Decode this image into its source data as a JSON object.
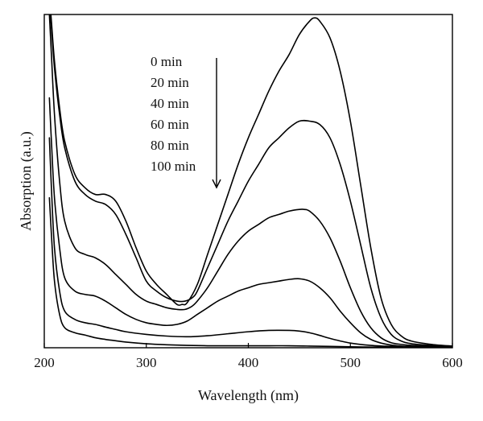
{
  "chart_data": {
    "type": "line",
    "title": "",
    "xlabel": "Wavelength (nm)",
    "ylabel": "Absorption (a.u.)",
    "xlim": [
      200,
      600
    ],
    "ylim": [
      0,
      1.0
    ],
    "xticks": [
      "200",
      "300",
      "400",
      "500",
      "600"
    ],
    "y_tick_labels": false,
    "grid": false,
    "legend_position": "top-center",
    "annotation_arrow": "down",
    "series": [
      {
        "name": "0 min",
        "x": [
          205,
          207,
          210,
          215,
          220,
          230,
          240,
          250,
          260,
          270,
          280,
          290,
          300,
          310,
          320,
          330,
          335,
          340,
          350,
          360,
          370,
          380,
          390,
          400,
          410,
          420,
          430,
          440,
          450,
          460,
          465,
          470,
          480,
          490,
          500,
          510,
          520,
          530,
          540,
          550,
          560,
          580,
          600
        ],
        "y": [
          1.06,
          0.98,
          0.86,
          0.72,
          0.62,
          0.52,
          0.48,
          0.46,
          0.46,
          0.44,
          0.38,
          0.3,
          0.23,
          0.19,
          0.16,
          0.13,
          0.13,
          0.135,
          0.19,
          0.28,
          0.37,
          0.46,
          0.55,
          0.63,
          0.7,
          0.77,
          0.83,
          0.88,
          0.94,
          0.98,
          0.99,
          0.98,
          0.93,
          0.83,
          0.68,
          0.49,
          0.3,
          0.15,
          0.07,
          0.035,
          0.02,
          0.01,
          0.005
        ]
      },
      {
        "name": "20 min",
        "x": [
          205,
          207,
          210,
          215,
          220,
          230,
          240,
          250,
          260,
          270,
          280,
          290,
          300,
          310,
          320,
          330,
          338,
          345,
          350,
          360,
          370,
          380,
          390,
          400,
          410,
          420,
          430,
          440,
          450,
          460,
          470,
          480,
          490,
          500,
          510,
          520,
          530,
          540,
          550,
          560,
          580,
          600
        ],
        "y": [
          1.04,
          0.96,
          0.84,
          0.7,
          0.6,
          0.5,
          0.46,
          0.44,
          0.43,
          0.4,
          0.34,
          0.27,
          0.2,
          0.17,
          0.15,
          0.14,
          0.14,
          0.15,
          0.17,
          0.24,
          0.31,
          0.38,
          0.44,
          0.5,
          0.55,
          0.6,
          0.63,
          0.66,
          0.68,
          0.68,
          0.67,
          0.63,
          0.55,
          0.44,
          0.31,
          0.18,
          0.09,
          0.04,
          0.02,
          0.012,
          0.007,
          0.004
        ]
      },
      {
        "name": "40 min",
        "x": [
          205,
          207,
          210,
          215,
          220,
          230,
          240,
          250,
          260,
          270,
          280,
          290,
          300,
          310,
          320,
          330,
          338,
          345,
          350,
          360,
          370,
          380,
          390,
          400,
          410,
          420,
          430,
          440,
          450,
          455,
          460,
          470,
          480,
          490,
          500,
          510,
          520,
          530,
          540,
          550,
          560,
          580,
          600
        ],
        "y": [
          1.0,
          0.88,
          0.7,
          0.5,
          0.38,
          0.3,
          0.28,
          0.27,
          0.25,
          0.22,
          0.19,
          0.16,
          0.14,
          0.13,
          0.12,
          0.115,
          0.115,
          0.125,
          0.14,
          0.18,
          0.23,
          0.28,
          0.32,
          0.35,
          0.37,
          0.39,
          0.4,
          0.41,
          0.415,
          0.415,
          0.41,
          0.38,
          0.33,
          0.26,
          0.18,
          0.11,
          0.06,
          0.03,
          0.015,
          0.01,
          0.007,
          0.004,
          0.003
        ]
      },
      {
        "name": "60 min",
        "x": [
          205,
          207,
          210,
          215,
          220,
          230,
          240,
          250,
          260,
          270,
          280,
          290,
          300,
          310,
          320,
          330,
          340,
          350,
          360,
          370,
          380,
          390,
          400,
          410,
          420,
          430,
          440,
          450,
          460,
          470,
          480,
          490,
          500,
          510,
          520,
          530,
          540,
          550,
          560,
          580,
          600
        ],
        "y": [
          0.75,
          0.62,
          0.45,
          0.3,
          0.21,
          0.17,
          0.16,
          0.155,
          0.14,
          0.12,
          0.1,
          0.085,
          0.075,
          0.07,
          0.067,
          0.07,
          0.08,
          0.1,
          0.12,
          0.14,
          0.155,
          0.17,
          0.18,
          0.19,
          0.195,
          0.2,
          0.205,
          0.207,
          0.2,
          0.18,
          0.15,
          0.11,
          0.075,
          0.045,
          0.025,
          0.014,
          0.008,
          0.005,
          0.004,
          0.003,
          0.002
        ]
      },
      {
        "name": "80 min",
        "x": [
          205,
          207,
          210,
          215,
          220,
          230,
          240,
          250,
          260,
          270,
          280,
          300,
          320,
          340,
          360,
          380,
          400,
          420,
          440,
          450,
          460,
          470,
          480,
          500,
          520,
          540,
          560,
          580,
          600
        ],
        "y": [
          0.63,
          0.48,
          0.3,
          0.17,
          0.11,
          0.085,
          0.075,
          0.07,
          0.062,
          0.055,
          0.048,
          0.04,
          0.035,
          0.033,
          0.036,
          0.042,
          0.048,
          0.052,
          0.052,
          0.05,
          0.045,
          0.037,
          0.028,
          0.014,
          0.007,
          0.004,
          0.003,
          0.002,
          0.002
        ]
      },
      {
        "name": "100 min",
        "x": [
          205,
          207,
          210,
          215,
          220,
          230,
          240,
          250,
          260,
          270,
          280,
          300,
          320,
          340,
          360,
          380,
          400,
          420,
          440,
          460,
          480,
          500,
          520,
          540,
          560,
          580,
          600
        ],
        "y": [
          0.45,
          0.34,
          0.2,
          0.1,
          0.06,
          0.045,
          0.038,
          0.03,
          0.025,
          0.021,
          0.017,
          0.012,
          0.009,
          0.007,
          0.006,
          0.006,
          0.006,
          0.006,
          0.006,
          0.005,
          0.004,
          0.003,
          0.002,
          0.002,
          0.001,
          0.001,
          0.001
        ]
      }
    ]
  }
}
